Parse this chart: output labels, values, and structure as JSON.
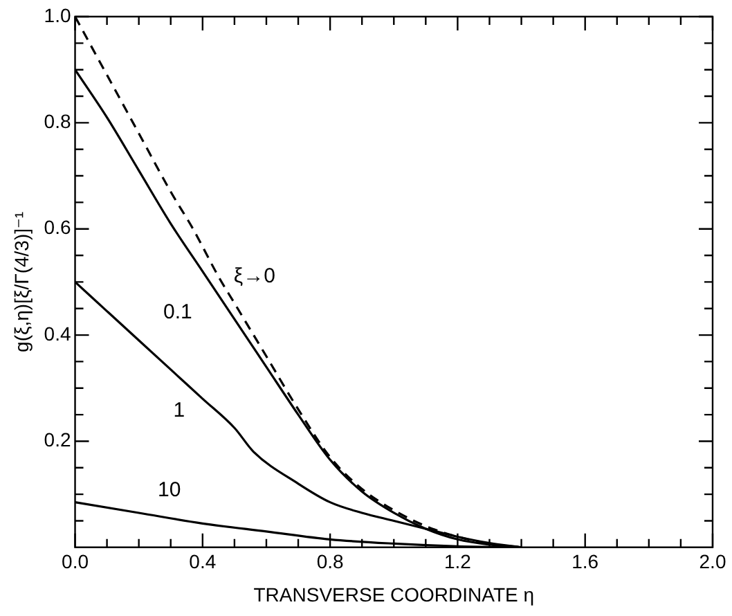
{
  "chart_data": {
    "type": "line",
    "xlabel": "TRANSVERSE COORDINATE η",
    "ylabel": "g(ξ,η)[ξ/Γ(4/3)]⁻¹",
    "xlim": [
      0,
      2
    ],
    "ylim": [
      0,
      1
    ],
    "xticks": [
      {
        "value": 0,
        "label": "0.0"
      },
      {
        "value": 0.1,
        "label": null
      },
      {
        "value": 0.2,
        "label": null
      },
      {
        "value": 0.3,
        "label": null
      },
      {
        "value": 0.4,
        "label": "0.4"
      },
      {
        "value": 0.5,
        "label": null
      },
      {
        "value": 0.6,
        "label": null
      },
      {
        "value": 0.7,
        "label": null
      },
      {
        "value": 0.8,
        "label": "0.8"
      },
      {
        "value": 0.9,
        "label": null
      },
      {
        "value": 1.0,
        "label": null
      },
      {
        "value": 1.1,
        "label": null
      },
      {
        "value": 1.2,
        "label": "1.2"
      },
      {
        "value": 1.3,
        "label": null
      },
      {
        "value": 1.4,
        "label": null
      },
      {
        "value": 1.5,
        "label": null
      },
      {
        "value": 1.6,
        "label": "1.6"
      },
      {
        "value": 1.7,
        "label": null
      },
      {
        "value": 1.8,
        "label": null
      },
      {
        "value": 1.9,
        "label": null
      },
      {
        "value": 2.0,
        "label": "2.0"
      }
    ],
    "yticks": [
      {
        "value": 0.05,
        "label": null
      },
      {
        "value": 0.1,
        "label": null
      },
      {
        "value": 0.15,
        "label": null
      },
      {
        "value": 0.2,
        "label": "0.2"
      },
      {
        "value": 0.25,
        "label": null
      },
      {
        "value": 0.3,
        "label": null
      },
      {
        "value": 0.35,
        "label": null
      },
      {
        "value": 0.4,
        "label": "0.4"
      },
      {
        "value": 0.45,
        "label": null
      },
      {
        "value": 0.5,
        "label": null
      },
      {
        "value": 0.55,
        "label": null
      },
      {
        "value": 0.6,
        "label": "0.6"
      },
      {
        "value": 0.65,
        "label": null
      },
      {
        "value": 0.7,
        "label": null
      },
      {
        "value": 0.75,
        "label": null
      },
      {
        "value": 0.8,
        "label": "0.8"
      },
      {
        "value": 0.85,
        "label": null
      },
      {
        "value": 0.9,
        "label": null
      },
      {
        "value": 0.95,
        "label": null
      },
      {
        "value": 1.0,
        "label": "1.0"
      }
    ],
    "grid": false,
    "legend": false,
    "marker": "none",
    "series": [
      {
        "name": "ξ→0",
        "color": "#000000",
        "line_style": "dashed",
        "x": [
          0,
          0.1,
          0.2,
          0.3,
          0.37,
          0.45,
          0.5,
          0.6,
          0.7,
          0.8,
          0.9,
          1.0,
          1.1,
          1.2,
          1.3,
          1.4
        ],
        "values": [
          1.0,
          0.89,
          0.78,
          0.67,
          0.6,
          0.51,
          0.46,
          0.36,
          0.26,
          0.17,
          0.11,
          0.07,
          0.04,
          0.02,
          0.007,
          0
        ]
      },
      {
        "name": "0.1",
        "color": "#000000",
        "line_style": "solid",
        "x": [
          0,
          0.1,
          0.2,
          0.3,
          0.4,
          0.5,
          0.6,
          0.7,
          0.8,
          0.9,
          1.0,
          1.1,
          1.2,
          1.3,
          1.4
        ],
        "values": [
          0.9,
          0.81,
          0.71,
          0.61,
          0.52,
          0.43,
          0.34,
          0.25,
          0.165,
          0.105,
          0.065,
          0.035,
          0.015,
          0.005,
          0
        ]
      },
      {
        "name": "1",
        "color": "#000000",
        "line_style": "solid",
        "x": [
          0,
          0.1,
          0.2,
          0.3,
          0.4,
          0.5,
          0.56,
          0.7,
          0.8,
          0.9,
          1.0,
          1.1,
          1.2,
          1.3,
          1.4
        ],
        "values": [
          0.5,
          0.445,
          0.39,
          0.335,
          0.28,
          0.225,
          0.18,
          0.12,
          0.085,
          0.065,
          0.05,
          0.035,
          0.02,
          0.008,
          0
        ]
      },
      {
        "name": "10",
        "color": "#000000",
        "line_style": "solid",
        "x": [
          0,
          0.2,
          0.4,
          0.6,
          0.8,
          1.0,
          1.2,
          1.4
        ],
        "values": [
          0.085,
          0.065,
          0.045,
          0.03,
          0.015,
          0.007,
          0.002,
          0
        ]
      }
    ]
  }
}
